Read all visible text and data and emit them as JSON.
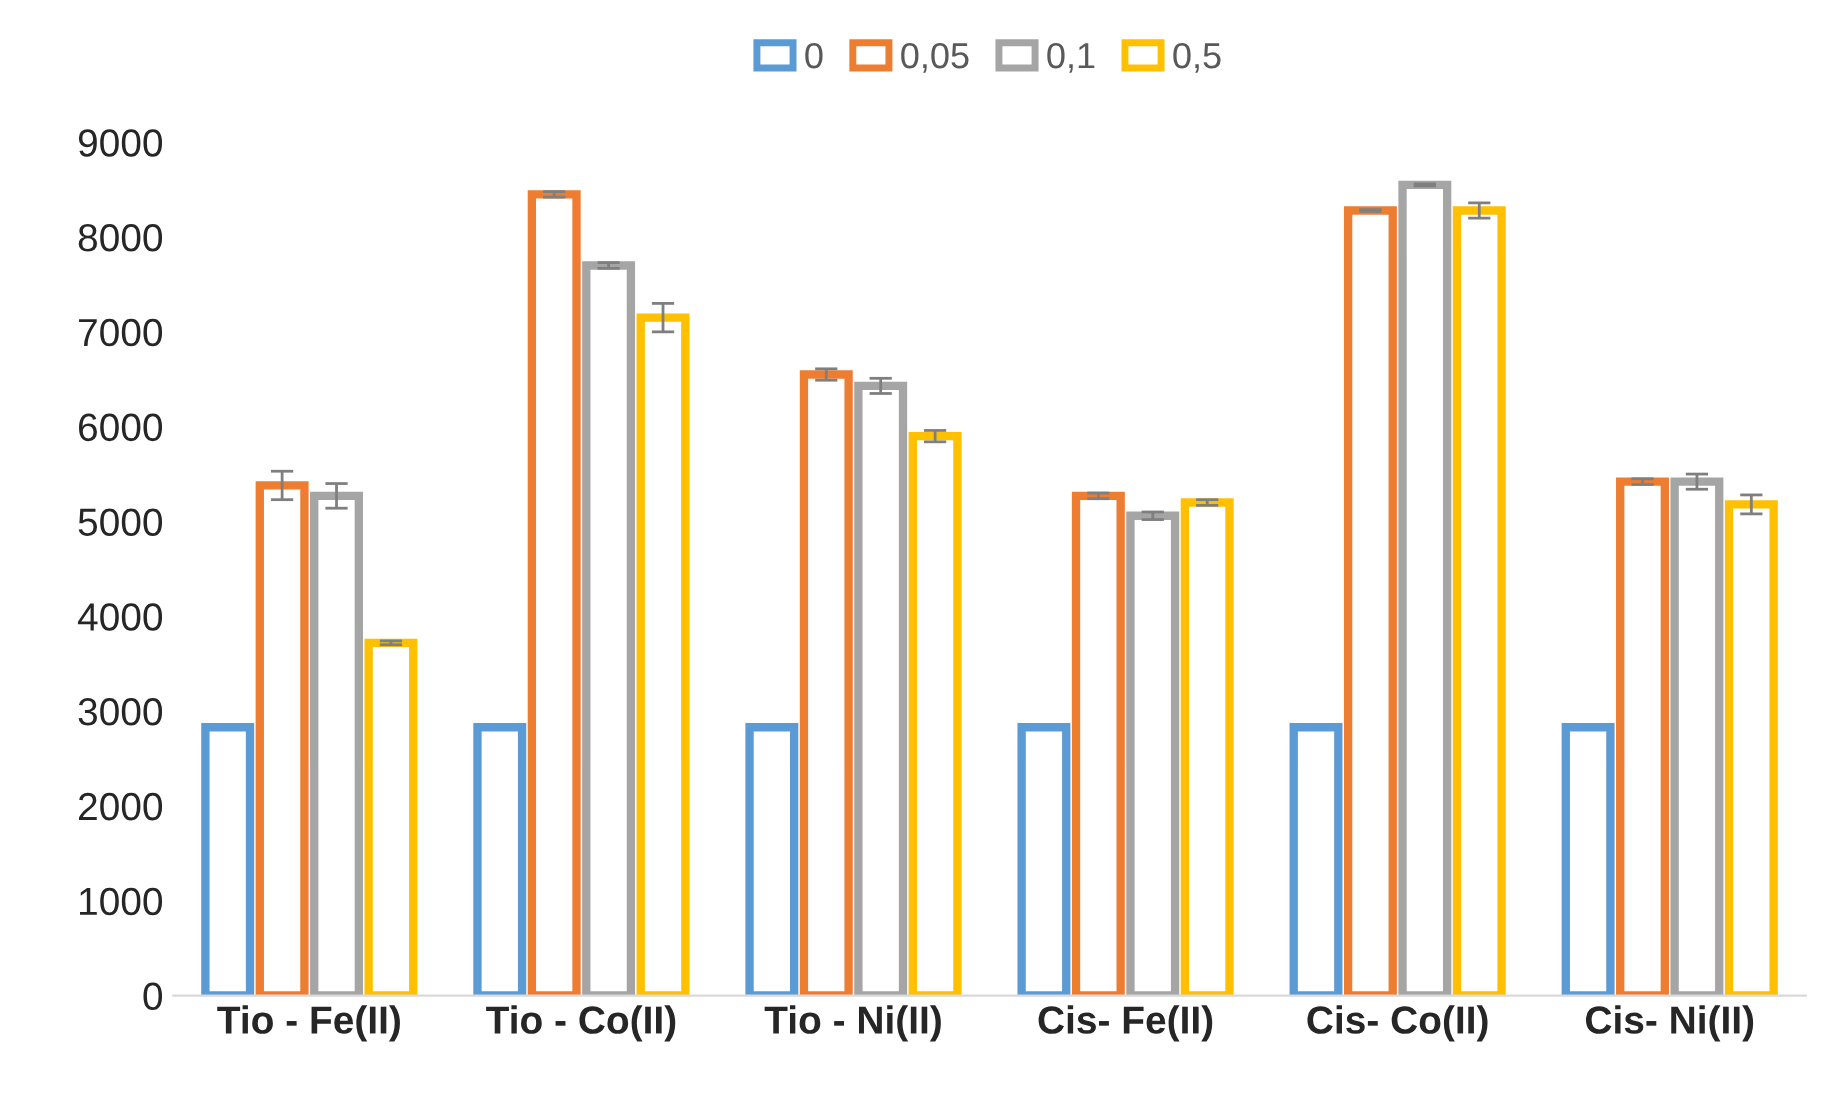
{
  "chart_data": {
    "type": "bar",
    "categories": [
      "Tio - Fe(II)",
      "Tio - Co(II)",
      "Tio - Ni(II)",
      "Cis- Fe(II)",
      "Cis- Co(II)",
      "Cis- Ni(II)"
    ],
    "series": [
      {
        "name": "0",
        "color": "#5b9bd5",
        "values": [
          2830,
          2830,
          2830,
          2830,
          2830,
          2830
        ]
      },
      {
        "name": "0,05",
        "color": "#ed7d31",
        "values": [
          5380,
          8450,
          6550,
          5270,
          8280,
          5420
        ],
        "errors": [
          150,
          30,
          60,
          30,
          10,
          30
        ]
      },
      {
        "name": "0,1",
        "color": "#a5a5a5",
        "values": [
          5270,
          7700,
          6430,
          5060,
          8550,
          5420
        ],
        "errors": [
          130,
          30,
          80,
          40,
          10,
          80
        ]
      },
      {
        "name": "0,5",
        "color": "#ffc000",
        "values": [
          3720,
          7150,
          5900,
          5200,
          8280,
          5180
        ],
        "errors": [
          20,
          150,
          60,
          30,
          80,
          100
        ]
      }
    ],
    "ylim": [
      0,
      9000
    ],
    "yticks": [
      0,
      1000,
      2000,
      3000,
      4000,
      5000,
      6000,
      7000,
      8000,
      9000
    ],
    "grid": false,
    "legend": "top"
  }
}
